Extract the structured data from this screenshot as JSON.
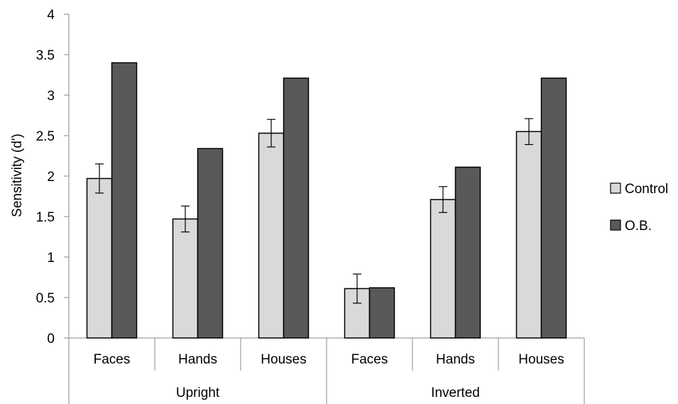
{
  "chart_data": {
    "type": "bar",
    "title": "",
    "xlabel": "",
    "ylabel": "Sensitivity (d')",
    "ylim": [
      0,
      4
    ],
    "yticks": [
      "0",
      "0.5",
      "1",
      "1.5",
      "2",
      "2.5",
      "3",
      "3.5",
      "4"
    ],
    "groups": [
      {
        "label": "Upright",
        "categories": [
          "Faces",
          "Hands",
          "Houses"
        ]
      },
      {
        "label": "Inverted",
        "categories": [
          "Faces",
          "Hands",
          "Houses"
        ]
      }
    ],
    "categories": [
      "Faces",
      "Hands",
      "Houses",
      "Faces",
      "Hands",
      "Houses"
    ],
    "series": [
      {
        "name": "Control",
        "color": "#d9d9d9",
        "values": [
          1.97,
          1.47,
          2.53,
          0.61,
          1.71,
          2.55
        ],
        "error": [
          0.18,
          0.16,
          0.17,
          0.18,
          0.16,
          0.16
        ]
      },
      {
        "name": "O.B.",
        "color": "#595959",
        "values": [
          3.4,
          2.34,
          3.21,
          0.62,
          2.11,
          3.21
        ]
      }
    ],
    "legend_position": "right",
    "grid": false
  }
}
